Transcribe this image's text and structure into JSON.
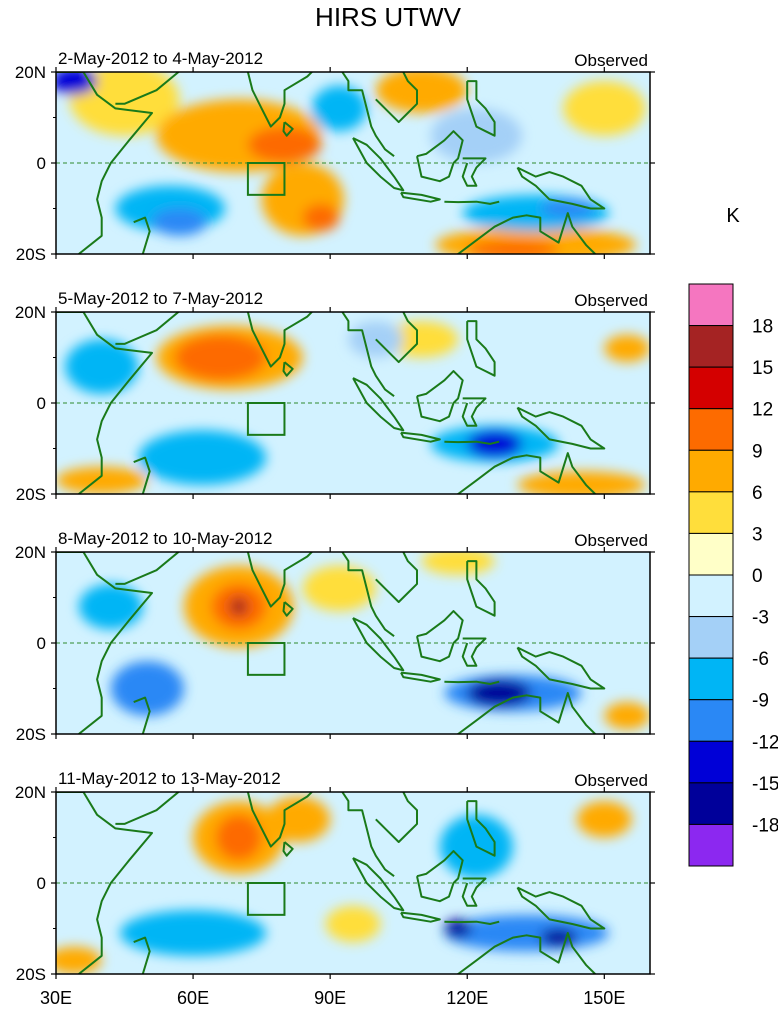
{
  "chart_data": {
    "type": "heatmap",
    "title": "HIRS UTWV",
    "units_label": "K",
    "x_ticks": [
      "30E",
      "60E",
      "90E",
      "120E",
      "150E"
    ],
    "x_tick_values": [
      30,
      60,
      90,
      120,
      150
    ],
    "y_ticks": [
      "20N",
      "0",
      "20S"
    ],
    "y_tick_values": [
      20,
      0,
      -20
    ],
    "xlim": [
      30,
      160
    ],
    "ylim": [
      -20,
      20
    ],
    "box_region": {
      "lon": [
        72,
        80
      ],
      "lat": [
        -7,
        0
      ]
    },
    "colorbar": {
      "labels": [
        "18",
        "15",
        "12",
        "9",
        "6",
        "3",
        "0",
        "-3",
        "-6",
        "-9",
        "-12",
        "-15",
        "-18"
      ],
      "colors": [
        "#f576c0",
        "#a52323",
        "#d40000",
        "#fd6b00",
        "#ffaa00",
        "#ffde3b",
        "#ffffc8",
        "#d2f2ff",
        "#a4d0f7",
        "#00b5f5",
        "#2a88f5",
        "#0000d7",
        "#00009a",
        "#8c28f0"
      ]
    },
    "panels": [
      {
        "period": "2-May-2012 to 4-May-2012",
        "label": "Observed",
        "blobs": [
          {
            "lon": 70,
            "lat": 6,
            "rlon": 18,
            "rlat": 8,
            "value": 6
          },
          {
            "lon": 80,
            "lat": 4,
            "rlon": 8,
            "rlat": 4,
            "value": 9
          },
          {
            "lon": 84,
            "lat": -8,
            "rlon": 9,
            "rlat": 8,
            "value": 6
          },
          {
            "lon": 88,
            "lat": -12,
            "rlon": 4,
            "rlat": 3,
            "value": 9
          },
          {
            "lon": 45,
            "lat": 14,
            "rlon": 12,
            "rlat": 8,
            "value": 3
          },
          {
            "lon": 110,
            "lat": 16,
            "rlon": 10,
            "rlat": 5,
            "value": 6
          },
          {
            "lon": 135,
            "lat": -18,
            "rlon": 22,
            "rlat": 4,
            "value": 6
          },
          {
            "lon": 130,
            "lat": -19,
            "rlon": 10,
            "rlat": 2,
            "value": 9
          },
          {
            "lon": 150,
            "lat": 12,
            "rlon": 9,
            "rlat": 6,
            "value": 3
          },
          {
            "lon": 34,
            "lat": 18,
            "rlon": 5,
            "rlat": 3,
            "value": -12
          },
          {
            "lon": 55,
            "lat": -10,
            "rlon": 12,
            "rlat": 5,
            "value": -6
          },
          {
            "lon": 57,
            "lat": -13,
            "rlon": 6,
            "rlat": 3,
            "value": -9
          },
          {
            "lon": 92,
            "lat": 12,
            "rlon": 6,
            "rlat": 5,
            "value": -6
          },
          {
            "lon": 135,
            "lat": -11,
            "rlon": 16,
            "rlat": 4,
            "value": -6
          },
          {
            "lon": 142,
            "lat": -10,
            "rlon": 6,
            "rlat": 2,
            "value": -9
          },
          {
            "lon": 122,
            "lat": 6,
            "rlon": 10,
            "rlat": 6,
            "value": -3
          }
        ]
      },
      {
        "period": "5-May-2012 to 7-May-2012",
        "label": "Observed",
        "blobs": [
          {
            "lon": 68,
            "lat": 10,
            "rlon": 16,
            "rlat": 7,
            "value": 6
          },
          {
            "lon": 66,
            "lat": 10,
            "rlon": 10,
            "rlat": 5,
            "value": 9
          },
          {
            "lon": 40,
            "lat": -17,
            "rlon": 10,
            "rlat": 3,
            "value": 6
          },
          {
            "lon": 145,
            "lat": -18,
            "rlon": 14,
            "rlat": 3,
            "value": 6
          },
          {
            "lon": 155,
            "lat": 12,
            "rlon": 5,
            "rlat": 3,
            "value": 6
          },
          {
            "lon": 110,
            "lat": 14,
            "rlon": 8,
            "rlat": 4,
            "value": 3
          },
          {
            "lon": 40,
            "lat": 8,
            "rlon": 8,
            "rlat": 6,
            "value": -6
          },
          {
            "lon": 62,
            "lat": -12,
            "rlon": 14,
            "rlat": 6,
            "value": -6
          },
          {
            "lon": 126,
            "lat": -9,
            "rlon": 14,
            "rlat": 4,
            "value": -6
          },
          {
            "lon": 126,
            "lat": -9,
            "rlon": 6,
            "rlat": 3,
            "value": -12
          },
          {
            "lon": 100,
            "lat": 14,
            "rlon": 6,
            "rlat": 4,
            "value": -3
          }
        ]
      },
      {
        "period": "8-May-2012 to 10-May-2012",
        "label": "Observed",
        "blobs": [
          {
            "lon": 70,
            "lat": 8,
            "rlon": 12,
            "rlat": 9,
            "value": 6
          },
          {
            "lon": 70,
            "lat": 8,
            "rlon": 6,
            "rlat": 5,
            "value": 9
          },
          {
            "lon": 70,
            "lat": 8,
            "rlon": 2,
            "rlat": 2,
            "value": 15
          },
          {
            "lon": 42,
            "lat": 8,
            "rlon": 7,
            "rlat": 5,
            "value": -6
          },
          {
            "lon": 50,
            "lat": -10,
            "rlon": 8,
            "rlat": 6,
            "value": -9
          },
          {
            "lon": 130,
            "lat": -11,
            "rlon": 15,
            "rlat": 4,
            "value": -9
          },
          {
            "lon": 127,
            "lat": -11,
            "rlon": 7,
            "rlat": 3,
            "value": -15
          },
          {
            "lon": 118,
            "lat": 18,
            "rlon": 8,
            "rlat": 3,
            "value": 3
          },
          {
            "lon": 155,
            "lat": -16,
            "rlon": 5,
            "rlat": 3,
            "value": 6
          },
          {
            "lon": 92,
            "lat": 12,
            "rlon": 8,
            "rlat": 5,
            "value": 3
          }
        ]
      },
      {
        "period": "11-May-2012 to 13-May-2012",
        "label": "Observed",
        "blobs": [
          {
            "lon": 70,
            "lat": 10,
            "rlon": 10,
            "rlat": 8,
            "value": 6
          },
          {
            "lon": 70,
            "lat": 10,
            "rlon": 5,
            "rlat": 5,
            "value": 9
          },
          {
            "lon": 83,
            "lat": 14,
            "rlon": 7,
            "rlat": 5,
            "value": 6
          },
          {
            "lon": 34,
            "lat": -17,
            "rlon": 6,
            "rlat": 3,
            "value": 6
          },
          {
            "lon": 150,
            "lat": 14,
            "rlon": 6,
            "rlat": 4,
            "value": 6
          },
          {
            "lon": 60,
            "lat": -11,
            "rlon": 16,
            "rlat": 5,
            "value": -6
          },
          {
            "lon": 122,
            "lat": 8,
            "rlon": 8,
            "rlat": 7,
            "value": -6
          },
          {
            "lon": 133,
            "lat": -11,
            "rlon": 18,
            "rlat": 4,
            "value": -9
          },
          {
            "lon": 118,
            "lat": -10,
            "rlon": 3,
            "rlat": 2,
            "value": -15
          },
          {
            "lon": 140,
            "lat": -12,
            "rlon": 4,
            "rlat": 2,
            "value": -15
          },
          {
            "lon": 95,
            "lat": -9,
            "rlon": 6,
            "rlat": 4,
            "value": 3
          }
        ]
      }
    ]
  }
}
